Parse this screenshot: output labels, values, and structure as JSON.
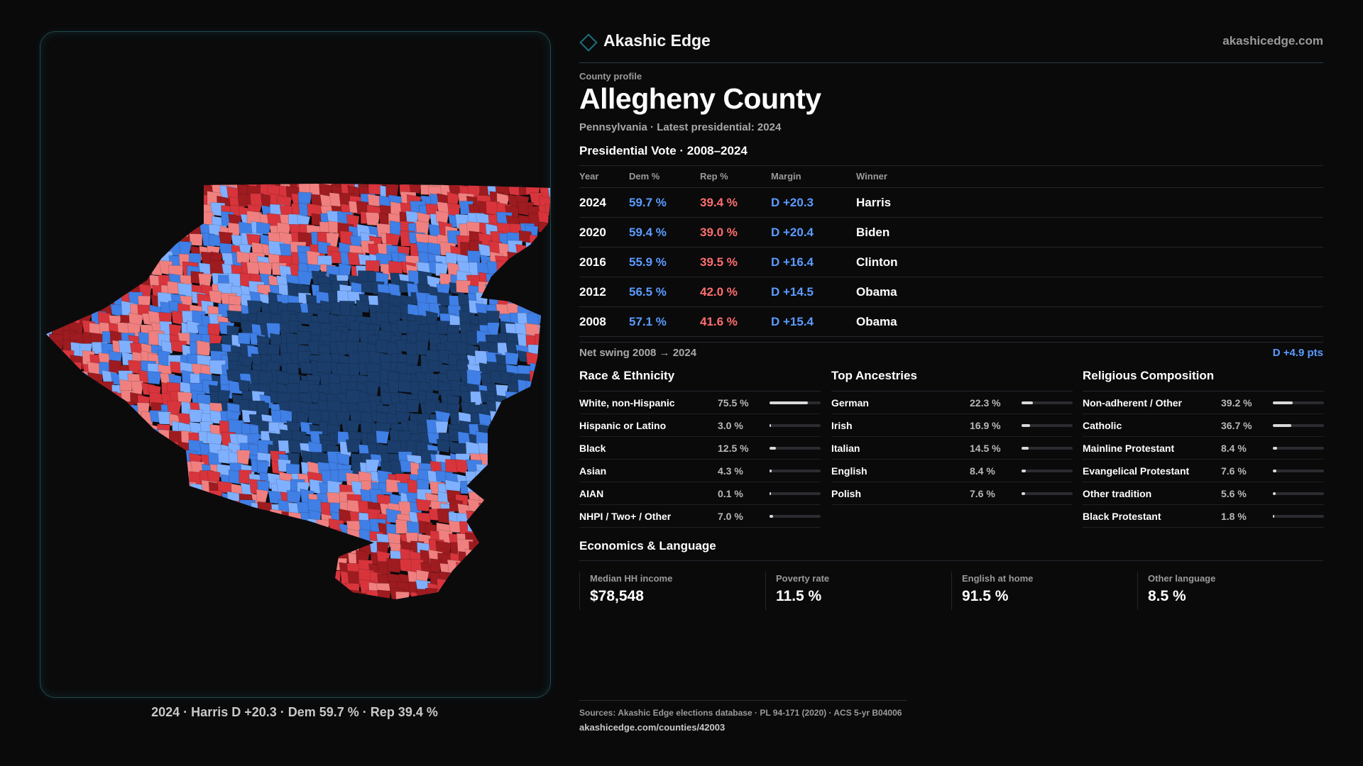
{
  "brand": {
    "name": "Akashic Edge",
    "url": "akashicedge.com",
    "icon": "diamond-icon"
  },
  "profile": {
    "eyebrow": "County profile",
    "title": "Allegheny County",
    "subtitle": "Pennsylvania · Latest presidential: 2024"
  },
  "map": {
    "caption": "2024 · Harris D +20.3 · Dem 59.7 % · Rep 39.4 %",
    "colors": {
      "dark_red": "#9e1b1f",
      "red": "#d8343c",
      "light_red": "#f08080",
      "light_blue": "#7fb0ff",
      "blue": "#3f7fe6",
      "dark_blue": "#1a3d6b"
    }
  },
  "vote": {
    "title": "Presidential Vote · 2008–2024",
    "headers": {
      "year": "Year",
      "dem": "Dem %",
      "rep": "Rep %",
      "margin": "Margin",
      "winner": "Winner"
    },
    "rows": [
      {
        "year": "2024",
        "dem": "59.7 %",
        "rep": "39.4 %",
        "margin": "D +20.3",
        "winner": "Harris"
      },
      {
        "year": "2020",
        "dem": "59.4 %",
        "rep": "39.0 %",
        "margin": "D +20.4",
        "winner": "Biden"
      },
      {
        "year": "2016",
        "dem": "55.9 %",
        "rep": "39.5 %",
        "margin": "D +16.4",
        "winner": "Clinton"
      },
      {
        "year": "2012",
        "dem": "56.5 %",
        "rep": "42.0 %",
        "margin": "D +14.5",
        "winner": "Obama"
      },
      {
        "year": "2008",
        "dem": "57.1 %",
        "rep": "41.6 %",
        "margin": "D +15.4",
        "winner": "Obama"
      }
    ],
    "swing_label": "Net swing 2008 → 2024",
    "swing_value": "D +4.9 pts"
  },
  "race": {
    "title": "Race & Ethnicity",
    "items": [
      {
        "label": "White, non-Hispanic",
        "value": "75.5 %",
        "pct": 75.5
      },
      {
        "label": "Hispanic or Latino",
        "value": "3.0 %",
        "pct": 3.0
      },
      {
        "label": "Black",
        "value": "12.5 %",
        "pct": 12.5
      },
      {
        "label": "Asian",
        "value": "4.3 %",
        "pct": 4.3
      },
      {
        "label": "AIAN",
        "value": "0.1 %",
        "pct": 0.1
      },
      {
        "label": "NHPI / Two+ / Other",
        "value": "7.0 %",
        "pct": 7.0
      }
    ]
  },
  "ancestry": {
    "title": "Top Ancestries",
    "items": [
      {
        "label": "German",
        "value": "22.3 %",
        "pct": 22.3
      },
      {
        "label": "Irish",
        "value": "16.9 %",
        "pct": 16.9
      },
      {
        "label": "Italian",
        "value": "14.5 %",
        "pct": 14.5
      },
      {
        "label": "English",
        "value": "8.4 %",
        "pct": 8.4
      },
      {
        "label": "Polish",
        "value": "7.6 %",
        "pct": 7.6
      }
    ]
  },
  "religion": {
    "title": "Religious Composition",
    "items": [
      {
        "label": "Non-adherent / Other",
        "value": "39.2 %",
        "pct": 39.2
      },
      {
        "label": "Catholic",
        "value": "36.7 %",
        "pct": 36.7
      },
      {
        "label": "Mainline Protestant",
        "value": "8.4 %",
        "pct": 8.4
      },
      {
        "label": "Evangelical Protestant",
        "value": "7.6 %",
        "pct": 7.6
      },
      {
        "label": "Other tradition",
        "value": "5.6 %",
        "pct": 5.6
      },
      {
        "label": "Black Protestant",
        "value": "1.8 %",
        "pct": 1.8
      }
    ]
  },
  "econ": {
    "title": "Economics & Language",
    "cards": [
      {
        "label": "Median HH income",
        "value": "$78,548"
      },
      {
        "label": "Poverty rate",
        "value": "11.5 %"
      },
      {
        "label": "English at home",
        "value": "91.5 %"
      },
      {
        "label": "Other language",
        "value": "8.5 %"
      }
    ]
  },
  "footer": {
    "sources": "Sources: Akashic Edge elections database · PL 94-171 (2020) · ACS 5-yr B04006",
    "url": "akashicedge.com/counties/42003"
  }
}
